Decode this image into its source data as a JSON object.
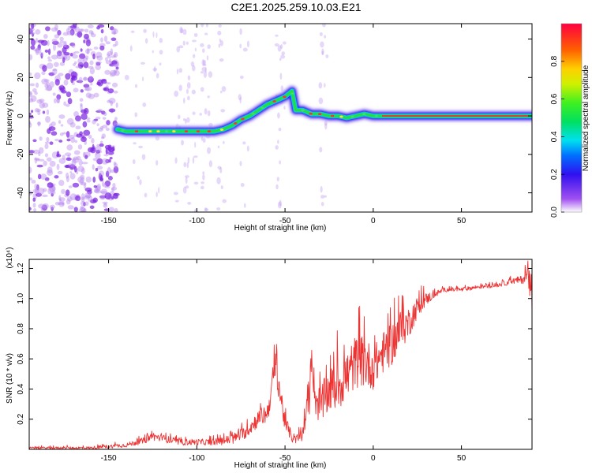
{
  "figure_title": "C2E1.2025.259.10.03.E21",
  "colors": {
    "snr_line": "#ee3333",
    "ridge_core": "#ff2020",
    "ridge_mid": "#22dd44",
    "ridge_outer": "#3322ee",
    "noise": "#9a40e8"
  },
  "chart_data": [
    {
      "id": "spectrogram",
      "type": "heatmap",
      "xlabel": "Height of straight line (km)",
      "ylabel": "Frequency (Hz)",
      "xlim": [
        -195,
        90
      ],
      "ylim": [
        -50,
        48
      ],
      "xticks": [
        -150,
        -100,
        -50,
        0,
        50
      ],
      "xtick_labels": [
        "-150",
        "-100",
        "-50",
        "0",
        "50"
      ],
      "yticks": [
        -40,
        -20,
        0,
        20,
        40
      ],
      "ytick_labels": [
        "-40",
        "-20",
        "0",
        "20",
        "40"
      ],
      "ridge": {
        "x": [
          -145,
          -140,
          -130,
          -120,
          -110,
          -100,
          -95,
          -90,
          -85,
          -80,
          -75,
          -70,
          -65,
          -60,
          -55,
          -50,
          -46,
          -44,
          -40,
          -35,
          -30,
          -25,
          -20,
          -15,
          -10,
          -5,
          0,
          10,
          30,
          60,
          90
        ],
        "y": [
          -7,
          -8,
          -8,
          -8,
          -8,
          -8,
          -8,
          -8,
          -7,
          -5,
          -2,
          0,
          3,
          6,
          8,
          10,
          13,
          3,
          3,
          1,
          1,
          0,
          0,
          -1,
          0,
          1,
          0,
          0,
          0,
          0,
          0
        ],
        "amplitude": [
          0.5,
          0.55,
          0.6,
          0.6,
          0.6,
          0.6,
          0.6,
          0.65,
          0.6,
          0.6,
          0.55,
          0.55,
          0.6,
          0.6,
          0.6,
          0.65,
          0.7,
          0.55,
          0.6,
          0.65,
          0.7,
          0.7,
          0.75,
          0.8,
          0.85,
          0.85,
          0.9,
          0.9,
          0.9,
          0.85,
          0.75
        ]
      },
      "noise_region_x": [
        -195,
        -145
      ]
    },
    {
      "id": "colorbar",
      "type": "colorbar",
      "label": "Normalized spectral amplitude",
      "range": [
        0,
        1
      ],
      "ticks": [
        0.0,
        0.2,
        0.4,
        0.6,
        0.8
      ],
      "tick_labels": [
        "0.0",
        "0.2",
        "0.4",
        "0.6",
        "0.8"
      ]
    },
    {
      "id": "snr",
      "type": "line",
      "xlabel": "Height of straight line (km)",
      "ylabel": "SNR (10 * v/v)",
      "scale_label": "(x10⁴)",
      "xlim": [
        -195,
        90
      ],
      "ylim": [
        0,
        1.26
      ],
      "xticks": [
        -150,
        -100,
        -50,
        0,
        50
      ],
      "xtick_labels": [
        "-150",
        "-100",
        "-50",
        "0",
        "50"
      ],
      "yticks": [
        0.2,
        0.4,
        0.6,
        0.8,
        1.0,
        1.2
      ],
      "ytick_labels": [
        "0.2",
        "0.4",
        "0.6",
        "0.8",
        "1.0",
        "1.2"
      ],
      "envelope": {
        "x": [
          -195,
          -160,
          -140,
          -130,
          -125,
          -110,
          -100,
          -90,
          -80,
          -72,
          -66,
          -60,
          -57,
          -55,
          -53,
          -50,
          -45,
          -40,
          -36,
          -35,
          -33,
          -30,
          -25,
          -20,
          -15,
          -10,
          -5,
          0,
          5,
          10,
          15,
          20,
          25,
          30,
          35,
          40,
          50,
          60,
          70,
          80,
          85,
          88,
          90
        ],
        "y": [
          0.01,
          0.01,
          0.03,
          0.06,
          0.09,
          0.05,
          0.05,
          0.05,
          0.07,
          0.12,
          0.2,
          0.25,
          0.45,
          0.6,
          0.4,
          0.18,
          0.06,
          0.1,
          0.35,
          0.7,
          0.35,
          0.3,
          0.4,
          0.45,
          0.5,
          0.6,
          0.6,
          0.55,
          0.65,
          0.7,
          0.8,
          0.85,
          0.95,
          1.0,
          1.03,
          1.06,
          1.06,
          1.08,
          1.09,
          1.12,
          1.13,
          1.18,
          1.2
        ],
        "noise": [
          0.01,
          0.015,
          0.02,
          0.03,
          0.04,
          0.03,
          0.03,
          0.03,
          0.05,
          0.06,
          0.08,
          0.1,
          0.15,
          0.2,
          0.15,
          0.08,
          0.04,
          0.06,
          0.15,
          0.2,
          0.15,
          0.2,
          0.2,
          0.25,
          0.25,
          0.25,
          0.25,
          0.2,
          0.2,
          0.2,
          0.2,
          0.15,
          0.1,
          0.06,
          0.03,
          0.02,
          0.02,
          0.02,
          0.02,
          0.03,
          0.04,
          0.08,
          0.25
        ]
      }
    }
  ]
}
